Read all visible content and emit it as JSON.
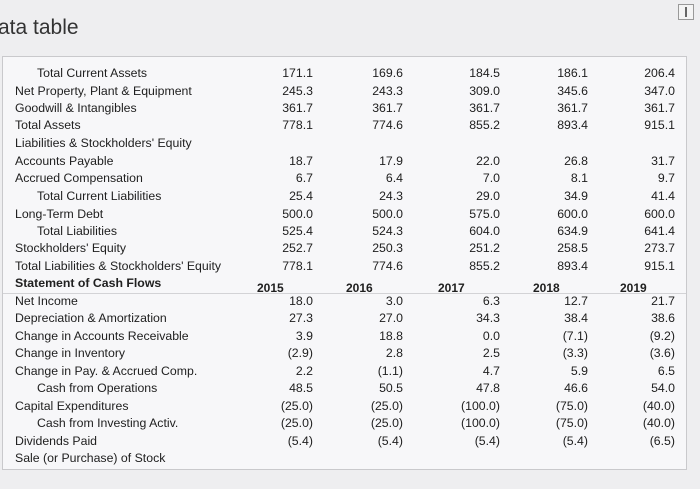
{
  "title": "ata table",
  "years": [
    "2015",
    "2016",
    "2017",
    "2018",
    "2019"
  ],
  "rows": [
    {
      "label": "Total Current Assets",
      "indent": true,
      "values": [
        "171.1",
        "169.6",
        "184.5",
        "186.1",
        "206.4"
      ]
    },
    {
      "label": "Net Property, Plant & Equipment",
      "values": [
        "245.3",
        "243.3",
        "309.0",
        "345.6",
        "347.0"
      ]
    },
    {
      "label": "Goodwill & Intangibles",
      "values": [
        "361.7",
        "361.7",
        "361.7",
        "361.7",
        "361.7"
      ]
    },
    {
      "label": "Total Assets",
      "values": [
        "778.1",
        "774.6",
        "855.2",
        "893.4",
        "915.1"
      ]
    },
    {
      "label": "Liabilities & Stockholders' Equity",
      "values": [
        "",
        "",
        "",
        "",
        ""
      ]
    },
    {
      "label": "Accounts Payable",
      "values": [
        "18.7",
        "17.9",
        "22.0",
        "26.8",
        "31.7"
      ]
    },
    {
      "label": "Accrued Compensation",
      "values": [
        "6.7",
        "6.4",
        "7.0",
        "8.1",
        "9.7"
      ]
    },
    {
      "label": "Total Current Liabilities",
      "indent": true,
      "values": [
        "25.4",
        "24.3",
        "29.0",
        "34.9",
        "41.4"
      ]
    },
    {
      "label": "Long-Term Debt",
      "values": [
        "500.0",
        "500.0",
        "575.0",
        "600.0",
        "600.0"
      ]
    },
    {
      "label": "Total Liabilities",
      "indent": true,
      "values": [
        "525.4",
        "524.3",
        "604.0",
        "634.9",
        "641.4"
      ]
    },
    {
      "label": "Stockholders' Equity",
      "values": [
        "252.7",
        "250.3",
        "251.2",
        "258.5",
        "273.7"
      ]
    },
    {
      "label": "Total Liabilities & Stockholders' Equity",
      "values": [
        "778.1",
        "774.6",
        "855.2",
        "893.4",
        "915.1"
      ]
    },
    {
      "label": "Statement of Cash Flows",
      "bold": true,
      "values": [
        "",
        "",
        "",
        "",
        ""
      ]
    },
    {
      "label": "Net Income",
      "values": [
        "18.0",
        "3.0",
        "6.3",
        "12.7",
        "21.7"
      ]
    },
    {
      "label": "Depreciation & Amortization",
      "values": [
        "27.3",
        "27.0",
        "34.3",
        "38.4",
        "38.6"
      ]
    },
    {
      "label": "Change in Accounts Receivable",
      "values": [
        "3.9",
        "18.8",
        "0.0",
        "(7.1)",
        "(9.2)"
      ]
    },
    {
      "label": "Change in Inventory",
      "values": [
        "(2.9)",
        "2.8",
        "2.5",
        "(3.3)",
        "(3.6)"
      ]
    },
    {
      "label": "Change in Pay. & Accrued Comp.",
      "values": [
        "2.2",
        "(1.1)",
        "4.7",
        "5.9",
        "6.5"
      ]
    },
    {
      "label": "Cash from Operations",
      "indent": true,
      "values": [
        "48.5",
        "50.5",
        "47.8",
        "46.6",
        "54.0"
      ]
    },
    {
      "label": "Capital Expenditures",
      "values": [
        "(25.0)",
        "(25.0)",
        "(100.0)",
        "(75.0)",
        "(40.0)"
      ]
    },
    {
      "label": "Cash from Investing Activ.",
      "indent": true,
      "values": [
        "(25.0)",
        "(25.0)",
        "(100.0)",
        "(75.0)",
        "(40.0)"
      ]
    },
    {
      "label": "Dividends Paid",
      "values": [
        "(5.4)",
        "(5.4)",
        "(5.4)",
        "(5.4)",
        "(6.5)"
      ]
    },
    {
      "label": "Sale (or Purchase) of Stock",
      "values": [
        "",
        "",
        "",
        "",
        ""
      ]
    }
  ]
}
